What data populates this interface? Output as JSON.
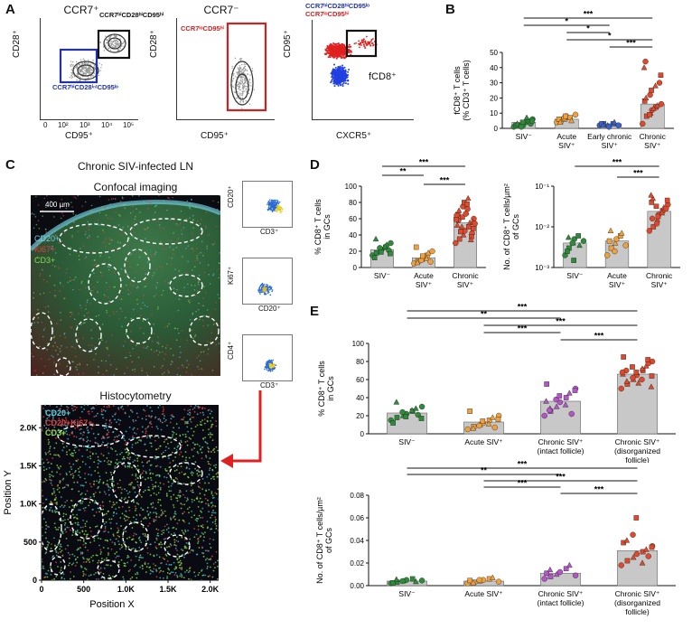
{
  "panels": {
    "A": {
      "letter": "A",
      "titles": [
        "CCR7⁺",
        "CCR7⁻"
      ],
      "gates": {
        "hi": "CCR7ʰⁱCD28ʰⁱCD95ʰⁱ",
        "low": "CCR7ʰⁱCD28ⁱⁿᵗCD95ˡᵒ",
        "neg": "CCR7ˡᵒCD95ʰⁱ"
      },
      "overlay_legend": [
        "CCR7ʰⁱCD28ʰⁱCD95ˡᵒ",
        "CCR7ˡᵒCD95ʰⁱ"
      ],
      "fcd8_label": "fCD8⁺",
      "axes": {
        "cd28": "CD28⁺",
        "cd95": "CD95⁺",
        "cxcr5": "CXCR5⁺"
      },
      "ticks": [
        "0",
        "10²",
        "10³",
        "10⁴",
        "10⁵"
      ]
    },
    "B": {
      "letter": "B",
      "chart_data": {
        "type": "bar",
        "ylabel": "fCD8⁺ T cells (% CD3⁺ T cells)",
        "ylim": [
          0,
          50
        ],
        "yticks": [
          "0",
          "10",
          "20",
          "30",
          "40",
          "50"
        ],
        "categories": [
          "SIV⁻",
          "Acute SIV⁺",
          "Early chronic SIV⁺",
          "Chronic SIV⁺"
        ],
        "values": [
          4,
          6,
          3,
          16
        ],
        "colors": [
          "#2e8b3a",
          "#f0a13c",
          "#3a62c8",
          "#e0492c"
        ],
        "points": [
          [
            1,
            2,
            3,
            2,
            4,
            5,
            6,
            2,
            3,
            1,
            4,
            7,
            3,
            5
          ],
          [
            4,
            5,
            6,
            8,
            7,
            5,
            9,
            6,
            4,
            7,
            8
          ],
          [
            2,
            3,
            2,
            1,
            3,
            4,
            2,
            3,
            2
          ],
          [
            3,
            8,
            10,
            12,
            14,
            15,
            16,
            18,
            20,
            22,
            25,
            28,
            30,
            35,
            40,
            44,
            9,
            13
          ]
        ],
        "significance": [
          {
            "from": 0,
            "to": 3,
            "label": "***"
          },
          {
            "from": 0,
            "to": 2,
            "label": "*"
          },
          {
            "from": 1,
            "to": 2,
            "label": "*"
          },
          {
            "from": 1,
            "to": 3,
            "label": "*"
          },
          {
            "from": 2,
            "to": 3,
            "label": "***"
          }
        ]
      }
    },
    "C": {
      "letter": "C",
      "title": "Chronic SIV-infected LN",
      "confocal_title": "Confocal imaging",
      "scale": "400 µm",
      "confocal_legend": [
        "CD20+",
        "Ki67+",
        "CD3+"
      ],
      "histo_title": "Histocytometry",
      "histo_legend": [
        "CD20+",
        "CD20+Ki67+",
        "CD3+"
      ],
      "flow_axes": [
        [
          "CD20⁺",
          "CD3⁺"
        ],
        [
          "Ki67⁺",
          "CD20⁺"
        ],
        [
          "CD4⁺",
          "CD3⁺"
        ]
      ],
      "chart_data": {
        "type": "scatter",
        "xlabel": "Position X",
        "ylabel": "Position Y",
        "xticks": [
          "0",
          "500",
          "1.0K",
          "1.5K",
          "2.0K"
        ],
        "yticks": [
          "0",
          "500",
          "1.0K",
          "1.5K",
          "2.0K"
        ],
        "xlim": [
          0,
          2100
        ],
        "ylim": [
          0,
          2300
        ]
      }
    },
    "D": {
      "letter": "D",
      "charts": [
        {
          "type": "bar",
          "ylabel": "% CD8⁺ T cells in GCs",
          "ylim": [
            0,
            100
          ],
          "yticks": [
            "0",
            "20",
            "40",
            "60",
            "80",
            "100"
          ],
          "categories": [
            "SIV⁻",
            "Acute SIV⁺",
            "Chronic SIV⁺"
          ],
          "values": [
            22,
            12,
            55
          ],
          "colors": [
            "#2e8b3a",
            "#f0a13c",
            "#e0492c"
          ],
          "points": [
            [
              15,
              18,
              20,
              22,
              25,
              28,
              30,
              12,
              35,
              24,
              19,
              26,
              21,
              17
            ],
            [
              5,
              8,
              10,
              12,
              15,
              18,
              20,
              25,
              6,
              9,
              14,
              11,
              7
            ],
            [
              30,
              35,
              40,
              45,
              50,
              55,
              60,
              65,
              70,
              75,
              80,
              85,
              42,
              48,
              52,
              58,
              62,
              68,
              72,
              38,
              56,
              64,
              44,
              50,
              66,
              78,
              34,
              54,
              59
            ]
          ],
          "significance": [
            {
              "from": 0,
              "to": 2,
              "label": "***"
            },
            {
              "from": 0,
              "to": 1,
              "label": "**"
            },
            {
              "from": 1,
              "to": 2,
              "label": "***"
            }
          ]
        },
        {
          "type": "bar",
          "ylabel": "No. of CD8⁺ T cells/µm² of GCs",
          "yscale": "log",
          "ylim": [
            0.001,
            0.1
          ],
          "yticks": [
            "10⁻³",
            "10⁻²",
            "10⁻¹"
          ],
          "categories": [
            "SIV⁻",
            "Acute SIV⁺",
            "Chronic SIV⁺"
          ],
          "values": [
            0.004,
            0.0045,
            0.024
          ],
          "colors": [
            "#2e8b3a",
            "#f0a13c",
            "#e0492c"
          ],
          "points": [
            [
              0.002,
              0.003,
              0.004,
              0.005,
              0.006,
              0.0035,
              0.0045,
              0.0025,
              0.0055,
              0.004,
              0.0015
            ],
            [
              0.002,
              0.003,
              0.004,
              0.005,
              0.006,
              0.007,
              0.0035,
              0.0045,
              0.008,
              0.0025
            ],
            [
              0.008,
              0.01,
              0.015,
              0.02,
              0.025,
              0.03,
              0.035,
              0.04,
              0.05,
              0.012,
              0.018,
              0.022,
              0.028,
              0.045,
              0.06,
              0.016,
              0.032
            ]
          ],
          "significance": [
            {
              "from": 0,
              "to": 2,
              "label": "***"
            },
            {
              "from": 1,
              "to": 2,
              "label": "***"
            }
          ]
        }
      ]
    },
    "E": {
      "letter": "E",
      "charts": [
        {
          "type": "bar",
          "ylabel": "% CD8⁺ T cells in GCs",
          "ylim": [
            0,
            100
          ],
          "yticks": [
            "0",
            "20",
            "40",
            "60",
            "80",
            "100"
          ],
          "categories": [
            "SIV⁻",
            "Acute SIV⁺",
            "Chronic SIV⁺ (intact follicle)",
            "Chronic SIV⁺ (disorganized follicle)"
          ],
          "values": [
            23,
            13,
            36,
            66
          ],
          "colors": [
            "#2e8b3a",
            "#f0a13c",
            "#b455c8",
            "#e0492c"
          ],
          "points": [
            [
              15,
              18,
              20,
              22,
              25,
              28,
              30,
              12,
              35,
              24,
              19,
              26,
              21,
              17
            ],
            [
              5,
              8,
              10,
              12,
              15,
              18,
              20,
              25,
              6,
              9,
              14,
              11,
              7,
              16
            ],
            [
              20,
              25,
              30,
              35,
              40,
              45,
              50,
              55,
              28,
              38,
              42,
              32,
              22,
              48,
              36,
              26
            ],
            [
              50,
              55,
              60,
              65,
              70,
              75,
              80,
              85,
              58,
              62,
              68,
              72,
              78,
              64,
              66,
              70,
              74,
              56,
              60,
              82,
              52,
              68
            ]
          ],
          "significance": [
            {
              "from": 0,
              "to": 3,
              "label": "***"
            },
            {
              "from": 0,
              "to": 2,
              "label": "**"
            },
            {
              "from": 1,
              "to": 3,
              "label": "***"
            },
            {
              "from": 1,
              "to": 2,
              "label": "***"
            },
            {
              "from": 2,
              "to": 3,
              "label": "***"
            }
          ]
        },
        {
          "type": "bar",
          "ylabel": "No. of CD8⁺ T cells/µm² of GCs",
          "ylim": [
            0,
            0.08
          ],
          "yticks": [
            "0.00",
            "0.02",
            "0.04",
            "0.06",
            "0.08"
          ],
          "categories": [
            "SIV⁻",
            "Acute SIV⁺",
            "Chronic SIV⁺ (intact follicle)",
            "Chronic SIV⁺ (disorganized follicle)"
          ],
          "values": [
            0.004,
            0.004,
            0.011,
            0.031
          ],
          "colors": [
            "#2e8b3a",
            "#f0a13c",
            "#b455c8",
            "#e0492c"
          ],
          "points": [
            [
              0.002,
              0.003,
              0.004,
              0.005,
              0.006,
              0.0035,
              0.0045,
              0.0025,
              0.0055,
              0.004
            ],
            [
              0.002,
              0.003,
              0.004,
              0.005,
              0.006,
              0.007,
              0.0035,
              0.0045,
              0.0025,
              0.005
            ],
            [
              0.006,
              0.008,
              0.01,
              0.012,
              0.015,
              0.018,
              0.009,
              0.011,
              0.014
            ],
            [
              0.018,
              0.022,
              0.025,
              0.028,
              0.03,
              0.032,
              0.035,
              0.038,
              0.04,
              0.045,
              0.06,
              0.02,
              0.026,
              0.034
            ]
          ],
          "significance": [
            {
              "from": 0,
              "to": 3,
              "label": "***"
            },
            {
              "from": 0,
              "to": 2,
              "label": "**"
            },
            {
              "from": 1,
              "to": 3,
              "label": "***"
            },
            {
              "from": 1,
              "to": 2,
              "label": "***"
            },
            {
              "from": 2,
              "to": 3,
              "label": "***"
            }
          ]
        }
      ]
    }
  }
}
